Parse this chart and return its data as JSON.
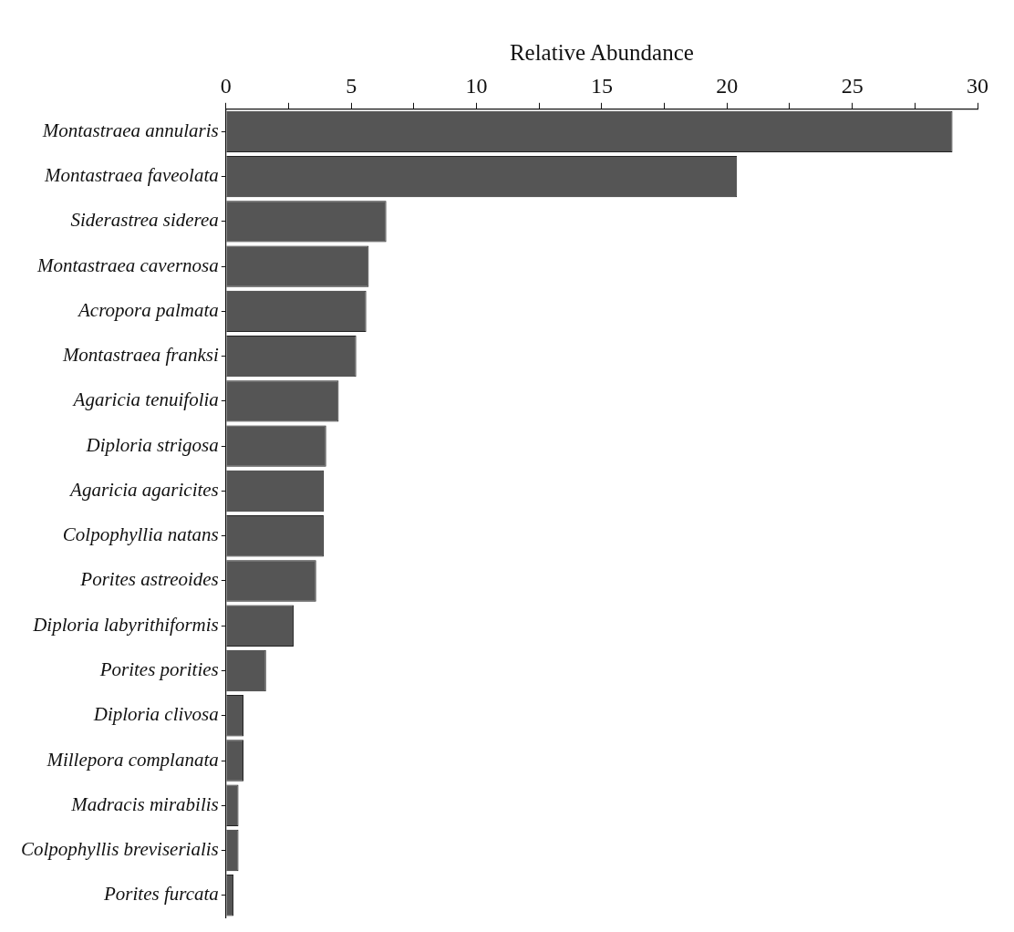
{
  "chart_data": {
    "type": "bar",
    "orientation": "horizontal",
    "xlabel": "Relative Abundance",
    "categories": [
      "Montastraea annularis",
      "Montastraea faveolata",
      "Siderastrea siderea",
      "Montastraea cavernosa",
      "Acropora palmata",
      "Montastraea franksi",
      "Agaricia tenuifolia",
      "Diploria strigosa",
      "Agaricia agaricites",
      "Colpophyllia natans",
      "Porites astreoides",
      "Diploria labyrithiformis",
      "Porites porities",
      "Diploria clivosa",
      "Millepora complanata",
      "Madracis mirabilis",
      "Colpophyllis breviserialis",
      "Porites furcata"
    ],
    "values": [
      29.0,
      20.4,
      6.4,
      5.7,
      5.6,
      5.2,
      4.5,
      4.0,
      3.9,
      3.9,
      3.6,
      2.7,
      1.6,
      0.7,
      0.7,
      0.5,
      0.5,
      0.3
    ],
    "color": "#555555",
    "xlim": [
      0,
      30
    ],
    "xticks": [
      0,
      {
        "value": 2.5,
        "label": null
      },
      5,
      {
        "value": 7.5,
        "label": null
      },
      10,
      {
        "value": 12.5,
        "label": null
      },
      15,
      {
        "value": 17.5,
        "label": null
      },
      20,
      {
        "value": 22.5,
        "label": null
      },
      25,
      {
        "value": 27.5,
        "label": null
      },
      30
    ],
    "grid": false,
    "legend": false
  }
}
